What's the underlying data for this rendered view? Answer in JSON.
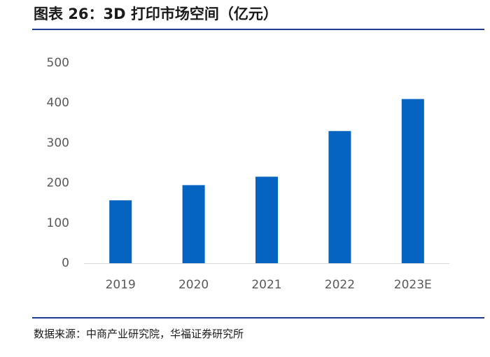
{
  "title": "图表 26：3D 打印市场空间（亿元）",
  "source": "数据来源：中商产业研究院，华福证券研究所",
  "colors": {
    "bar": "#0563c1",
    "rule": "#1f3a93",
    "axis": "#d9d9d9"
  },
  "chart_data": {
    "type": "bar",
    "title": "3D 打印市场空间（亿元）",
    "xlabel": "",
    "ylabel": "",
    "categories": [
      "2019",
      "2020",
      "2021",
      "2022",
      "2023E"
    ],
    "values": [
      157,
      195,
      216,
      330,
      410
    ],
    "ylim": [
      0,
      500
    ],
    "yticks": [
      "0",
      "100",
      "200",
      "300",
      "400",
      "500"
    ],
    "grid": false,
    "legend": "none"
  }
}
